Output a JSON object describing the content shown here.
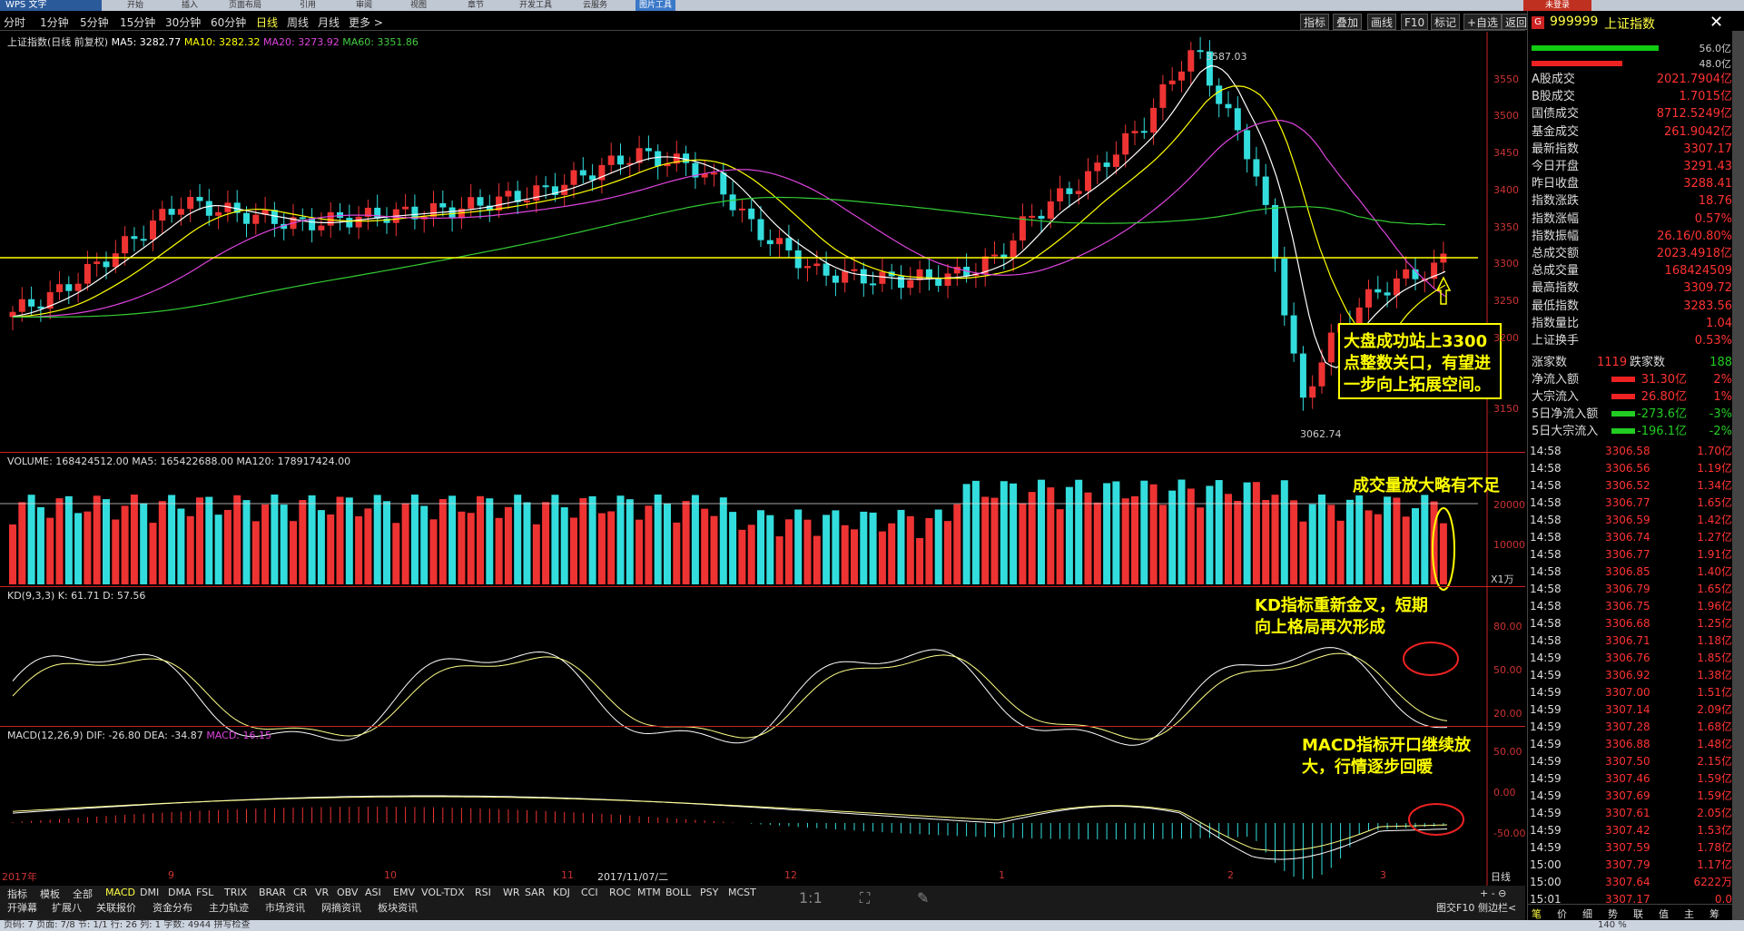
{
  "app": {
    "logo": "WPS 文字",
    "login": "未登录",
    "menus": [
      "开始",
      "插入",
      "页面布局",
      "引用",
      "审阅",
      "视图",
      "章节",
      "开发工具",
      "云服务",
      "图片工具"
    ]
  },
  "periods": [
    "分时",
    "1分钟",
    "5分钟",
    "15分钟",
    "30分钟",
    "60分钟",
    "日线",
    "周线",
    "月线",
    "更多 >"
  ],
  "period_selected": "日线",
  "tools": [
    "指标",
    "叠加",
    "画线",
    "F10",
    "标记",
    "+自选",
    "返回"
  ],
  "main_chart": {
    "title": "上证指数(日线 前复权)",
    "ma5": "MA5: 3282.77",
    "ma10": "MA10: 3282.32",
    "ma20": "MA20: 3273.92",
    "ma60": "MA60: 3351.86",
    "high_mark": "3587.03",
    "low_mark": "3062.74",
    "y_ticks": [
      "3550",
      "3500",
      "3450",
      "3400",
      "3350",
      "3300",
      "3250",
      "3200",
      "3150"
    ],
    "x_ticks": [
      "2017年",
      "9",
      "10",
      "11",
      "2017/11/07/二",
      "12",
      "1",
      "2",
      "3",
      "日线"
    ],
    "level_line": "3300"
  },
  "volume_chart": {
    "title": "VOLUME: 168424512.00 MA5: 165422688.00 MA120: 178917424.00",
    "y_ticks": [
      "20000",
      "10000"
    ],
    "unit": "X1万"
  },
  "kd_chart": {
    "title": "KD(9,3,3)  K: 61.71  D: 57.56",
    "y_ticks": [
      "80.00",
      "50.00",
      "20.00"
    ]
  },
  "macd_chart": {
    "title": "MACD(12,26,9)  DIF: -26.80  DEA: -34.87",
    "macd_val": "MACD: 16.15",
    "y_ticks": [
      "50.00",
      "0.00",
      "-50.00"
    ]
  },
  "annotations": {
    "a1": [
      "大盘成功站上3300",
      "点整数关口，有望进",
      "一步向上拓展空间。"
    ],
    "a2": "成交量放大略有不足",
    "a3": [
      "KD指标重新金叉，短期",
      "向上格局再次形成"
    ],
    "a4": [
      "MACD指标开口继续放",
      "大，行情逐步回暖"
    ]
  },
  "quote": {
    "code": "999999",
    "name": "上证指数",
    "bar_top": "56.0亿",
    "bar_bottom": "48.0亿",
    "rows": [
      {
        "k": "A股成交",
        "v": "2021.7904亿"
      },
      {
        "k": "B股成交",
        "v": "1.7015亿"
      },
      {
        "k": "国债成交",
        "v": "8712.5249亿"
      },
      {
        "k": "基金成交",
        "v": "261.9042亿"
      },
      {
        "k": "最新指数",
        "v": "3307.17"
      },
      {
        "k": "今日开盘",
        "v": "3291.43"
      },
      {
        "k": "昨日收盘",
        "v": "3288.41"
      },
      {
        "k": "指数涨跌",
        "v": "18.76"
      },
      {
        "k": "指数涨幅",
        "v": "0.57%"
      },
      {
        "k": "指数振幅",
        "v": "26.16/0.80%"
      },
      {
        "k": "总成交额",
        "v": "2023.4918亿"
      },
      {
        "k": "总成交量",
        "v": "168424509"
      },
      {
        "k": "最高指数",
        "v": "3309.72"
      },
      {
        "k": "最低指数",
        "v": "3283.56"
      },
      {
        "k": "指数量比",
        "v": "1.04"
      },
      {
        "k": "上证换手",
        "v": "0.53%"
      }
    ],
    "up_label": "涨家数",
    "up": "1119",
    "down_label": "跌家数",
    "down": "188",
    "flows": [
      {
        "k": "净流入额",
        "v": "31.30亿",
        "p": "2%"
      },
      {
        "k": "大宗流入",
        "v": "26.80亿",
        "p": "1%"
      },
      {
        "k": "5日净流入额",
        "v": "-273.6亿",
        "p": "-3%"
      },
      {
        "k": "5日大宗流入",
        "v": "-196.1亿",
        "p": "-2%"
      }
    ],
    "ticks": [
      {
        "t": "14:58",
        "p": "3306.58",
        "v": "1.70亿"
      },
      {
        "t": "14:58",
        "p": "3306.56",
        "v": "1.19亿"
      },
      {
        "t": "14:58",
        "p": "3306.52",
        "v": "1.34亿"
      },
      {
        "t": "14:58",
        "p": "3306.77",
        "v": "1.65亿"
      },
      {
        "t": "14:58",
        "p": "3306.59",
        "v": "1.42亿"
      },
      {
        "t": "14:58",
        "p": "3306.74",
        "v": "1.27亿"
      },
      {
        "t": "14:58",
        "p": "3306.77",
        "v": "1.91亿"
      },
      {
        "t": "14:58",
        "p": "3306.85",
        "v": "1.40亿"
      },
      {
        "t": "14:58",
        "p": "3306.79",
        "v": "1.65亿"
      },
      {
        "t": "14:58",
        "p": "3306.75",
        "v": "1.96亿"
      },
      {
        "t": "14:58",
        "p": "3306.68",
        "v": "1.25亿"
      },
      {
        "t": "14:58",
        "p": "3306.71",
        "v": "1.18亿"
      },
      {
        "t": "14:59",
        "p": "3306.76",
        "v": "1.85亿"
      },
      {
        "t": "14:59",
        "p": "3306.92",
        "v": "1.38亿"
      },
      {
        "t": "14:59",
        "p": "3307.00",
        "v": "1.51亿"
      },
      {
        "t": "14:59",
        "p": "3307.14",
        "v": "2.09亿"
      },
      {
        "t": "14:59",
        "p": "3307.28",
        "v": "1.68亿"
      },
      {
        "t": "14:59",
        "p": "3306.88",
        "v": "1.48亿"
      },
      {
        "t": "14:59",
        "p": "3307.50",
        "v": "2.15亿"
      },
      {
        "t": "14:59",
        "p": "3307.46",
        "v": "1.59亿"
      },
      {
        "t": "14:59",
        "p": "3307.69",
        "v": "1.59亿"
      },
      {
        "t": "14:59",
        "p": "3307.61",
        "v": "2.05亿"
      },
      {
        "t": "14:59",
        "p": "3307.42",
        "v": "1.53亿"
      },
      {
        "t": "14:59",
        "p": "3307.59",
        "v": "1.78亿"
      },
      {
        "t": "15:00",
        "p": "3307.79",
        "v": "1.17亿"
      },
      {
        "t": "15:00",
        "p": "3307.64",
        "v": "6222万"
      },
      {
        "t": "15:01",
        "p": "3307.17",
        "v": "0.0"
      }
    ],
    "bottom_tabs": [
      "笔",
      "价",
      "细",
      "势",
      "联",
      "值",
      "主",
      "筹"
    ]
  },
  "indicator_tabs": [
    "指标",
    "模板",
    "全部",
    "MACD",
    "DMI",
    "DMA",
    "FSL",
    "TRIX",
    "BRAR",
    "CR",
    "VR",
    "OBV",
    "ASI",
    "EMV",
    "VOL-TDX",
    "RSI",
    "WR",
    "SAR",
    "KDJ",
    "CCI",
    "ROC",
    "MTM",
    "BOLL",
    "PSY",
    "MCST"
  ],
  "indicator_selected": "MACD",
  "bottom_tabs2": [
    "开弹幕",
    "扩展八",
    "关联报价",
    "资金分布",
    "主力轨迹",
    "市场资讯",
    "网摘资讯",
    "板块资讯"
  ],
  "right_bottom": [
    "图交F10",
    "侧边栏<"
  ],
  "zoom_text": "1:1",
  "status": "页码: 7    页面: 7/8    节: 1/1    行: 26  列: 1    字数: 4944    拼写检查",
  "status_zoom": "140 %"
}
